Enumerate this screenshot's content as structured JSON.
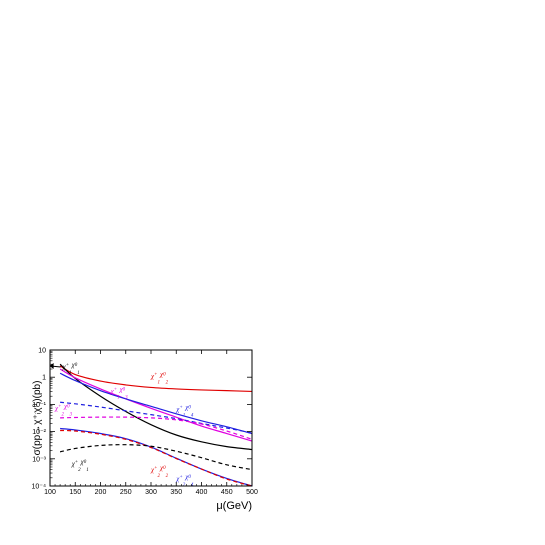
{
  "chart_data": {
    "type": "line",
    "title": "",
    "xlabel": "μ(GeV)",
    "ylabel": "σ(pp→χ⁺ᵢχ⁰ⱼ)(pb)",
    "xlim": [
      100,
      500
    ],
    "ylim": [
      0.0001,
      10
    ],
    "yscale": "log",
    "grid": false,
    "x_ticks": [
      100,
      150,
      200,
      250,
      300,
      350,
      400,
      450,
      500
    ],
    "y_ticks": [
      {
        "value": 10,
        "label": "10"
      },
      {
        "value": 1,
        "label": "1"
      },
      {
        "value": 0.1,
        "label": "10⁻¹"
      },
      {
        "value": 0.01,
        "label": "10⁻²"
      },
      {
        "value": 0.001,
        "label": "10⁻³"
      },
      {
        "value": 0.0001,
        "label": "10⁻⁴"
      }
    ],
    "series": [
      {
        "color": "#e00000",
        "style": "solid",
        "x": [
          120,
          150,
          200,
          250,
          300,
          350,
          400,
          450,
          500
        ],
        "y": [
          2.6,
          1.25,
          0.72,
          0.52,
          0.42,
          0.37,
          0.34,
          0.32,
          0.3
        ]
      },
      {
        "color": "#000000",
        "style": "solid",
        "x": [
          120,
          150,
          200,
          250,
          300,
          350,
          400,
          450,
          500
        ],
        "y": [
          3.0,
          0.9,
          0.2,
          0.055,
          0.018,
          0.0075,
          0.0042,
          0.0028,
          0.0022
        ]
      },
      {
        "color": "#e000e0",
        "style": "solid",
        "x": [
          120,
          150,
          200,
          250,
          300,
          350,
          400,
          450,
          500
        ],
        "y": [
          2.0,
          0.95,
          0.37,
          0.16,
          0.072,
          0.034,
          0.016,
          0.0085,
          0.0045
        ]
      },
      {
        "color": "#2020e0",
        "style": "solid",
        "x": [
          120,
          150,
          200,
          250,
          300,
          350,
          400,
          450,
          500
        ],
        "y": [
          1.4,
          0.75,
          0.32,
          0.16,
          0.085,
          0.045,
          0.025,
          0.015,
          0.0085
        ]
      },
      {
        "color": "#2020e0",
        "style": "dashed",
        "x": [
          120,
          150,
          200,
          250,
          300,
          350,
          400,
          450,
          500
        ],
        "y": [
          0.12,
          0.105,
          0.08,
          0.058,
          0.042,
          0.03,
          0.02,
          0.0135,
          0.009
        ]
      },
      {
        "color": "#e000e0",
        "style": "dashed",
        "x": [
          120,
          150,
          200,
          250,
          300,
          350,
          400,
          450,
          500
        ],
        "y": [
          0.032,
          0.033,
          0.034,
          0.034,
          0.032,
          0.027,
          0.019,
          0.0105,
          0.0052
        ]
      },
      {
        "color": "#2020e0",
        "style": "solid",
        "x": [
          120,
          150,
          200,
          250,
          300,
          350,
          400,
          450,
          500
        ],
        "y": [
          0.013,
          0.0115,
          0.0085,
          0.0055,
          0.0027,
          0.00105,
          0.00042,
          0.00019,
          0.0001
        ]
      },
      {
        "color": "#e00000",
        "style": "dashed",
        "x": [
          120,
          150,
          200,
          250,
          300,
          350,
          400,
          450,
          500
        ],
        "y": [
          0.011,
          0.0105,
          0.008,
          0.0052,
          0.0026,
          0.00102,
          0.00042,
          0.00018,
          0.0001
        ]
      },
      {
        "color": "#000000",
        "style": "dashed",
        "x": [
          120,
          150,
          200,
          250,
          300,
          350,
          400,
          450,
          500
        ],
        "y": [
          0.0018,
          0.0024,
          0.0031,
          0.0033,
          0.0029,
          0.0019,
          0.0011,
          0.0006,
          0.0004
        ]
      }
    ],
    "annotations": [
      {
        "base": "χ",
        "sup1": "+",
        "sub": "1",
        "mid": "χ",
        "sup2": "0",
        "sub2": "1",
        "color": "#000000",
        "x": 125,
        "y": 2.0,
        "arrow": true
      },
      {
        "base": "χ",
        "sup1": "+",
        "sub": "1",
        "mid": "χ",
        "sup2": "0",
        "sub2": "2",
        "color": "#e00000",
        "x": 300,
        "y": 0.9
      },
      {
        "base": "χ",
        "sup1": "+",
        "sub": "1",
        "mid": "χ",
        "sup2": "0",
        "sub2": "3",
        "color": "#e000e0",
        "x": 220,
        "y": 0.25
      },
      {
        "base": "χ",
        "sup1": "+",
        "sub": "1",
        "mid": "χ",
        "sup2": "0",
        "sub2": "4",
        "color": "#2020e0",
        "x": 350,
        "y": 0.055
      },
      {
        "base": "χ",
        "sup1": "+",
        "sub": "2",
        "mid": "χ",
        "sup2": "0",
        "sub2": "3",
        "color": "#e000e0",
        "x": 110,
        "y": 0.06
      },
      {
        "base": "χ",
        "sup1": "+",
        "sub": "2",
        "mid": "χ",
        "sup2": "0",
        "sub2": "1",
        "color": "#000000",
        "x": 143,
        "y": 0.00055
      },
      {
        "base": "χ",
        "sup1": "+",
        "sub": "2",
        "mid": "χ",
        "sup2": "0",
        "sub2": "2",
        "color": "#e00000",
        "x": 300,
        "y": 0.00033
      },
      {
        "base": "χ",
        "sup1": "+",
        "sub": "2",
        "mid": "χ",
        "sup2": "0",
        "sub2": "4",
        "color": "#2020e0",
        "x": 350,
        "y": 0.00015
      }
    ]
  }
}
